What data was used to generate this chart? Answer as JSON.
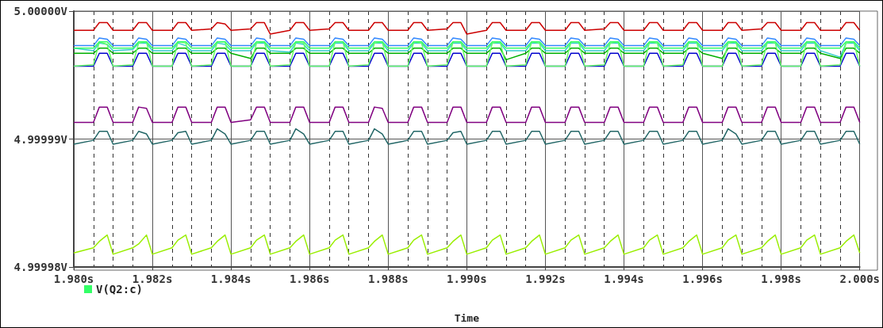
{
  "chart_data": {
    "type": "line",
    "xlabel": "Time",
    "xlim": [
      1.98,
      2.0
    ],
    "xticks": [
      {
        "value": 1.98,
        "label": "1.980s"
      },
      {
        "value": 1.982,
        "label": "1.982s"
      },
      {
        "value": 1.984,
        "label": "1.984s"
      },
      {
        "value": 1.986,
        "label": "1.986s"
      },
      {
        "value": 1.988,
        "label": "1.988s"
      },
      {
        "value": 1.99,
        "label": "1.990s"
      },
      {
        "value": 1.992,
        "label": "1.992s"
      },
      {
        "value": 1.994,
        "label": "1.994s"
      },
      {
        "value": 1.996,
        "label": "1.996s"
      },
      {
        "value": 1.998,
        "label": "1.998s"
      },
      {
        "value": 2.0,
        "label": "2.000s"
      }
    ],
    "ylim": [
      4.99998,
      5.0
    ],
    "yticks": [
      {
        "value": 4.99998,
        "label": "4.99998V"
      },
      {
        "value": 4.99999,
        "label": "4.99999V"
      },
      {
        "value": 5.0,
        "label": "5.00000V"
      }
    ],
    "grid": true,
    "legend": "bottom left",
    "line_style": "solid",
    "x": [
      1.98,
      1.9805,
      1.98065,
      1.98085,
      1.981,
      1.9815,
      1.98165,
      1.98185,
      1.982,
      1.9825,
      1.98265,
      1.98285,
      1.983,
      1.9835,
      1.98365,
      1.98385,
      1.984,
      1.9845,
      1.98465,
      1.98485,
      1.985,
      1.9855,
      1.98565,
      1.98585,
      1.986,
      1.9865,
      1.98665,
      1.98685,
      1.987,
      1.9875,
      1.98765,
      1.98785,
      1.988,
      1.9885,
      1.98865,
      1.98885,
      1.989,
      1.9895,
      1.98965,
      1.98985,
      1.99,
      1.9905,
      1.99065,
      1.99085,
      1.991,
      1.9915,
      1.99165,
      1.99185,
      1.992,
      1.9925,
      1.99265,
      1.99285,
      1.993,
      1.9935,
      1.99365,
      1.99385,
      1.994,
      1.9945,
      1.99465,
      1.99485,
      1.995,
      1.9955,
      1.99565,
      1.99585,
      1.996,
      1.9965,
      1.99665,
      1.99685,
      1.997,
      1.9975,
      1.99765,
      1.99785,
      1.998,
      1.9985,
      1.99865,
      1.99885,
      1.999,
      1.9995,
      1.99965,
      1.99985,
      2.0
    ],
    "series": [
      {
        "color": "#cc0000",
        "values": [
          4.9999985,
          4.9999985,
          4.9999991,
          4.9999991,
          4.9999985,
          4.9999985,
          4.9999991,
          4.9999991,
          4.9999985,
          4.9999985,
          4.9999991,
          4.9999991,
          4.9999985,
          4.9999986,
          4.9999991,
          4.999999,
          4.9999985,
          4.9999986,
          4.9999991,
          4.9999991,
          4.9999982,
          4.9999985,
          4.9999991,
          4.9999991,
          4.9999985,
          4.9999986,
          4.9999991,
          4.9999991,
          4.9999985,
          4.9999985,
          4.9999991,
          4.9999991,
          4.9999985,
          4.9999985,
          4.9999991,
          4.9999991,
          4.9999985,
          4.9999986,
          4.9999991,
          4.9999991,
          4.9999982,
          4.9999985,
          4.9999991,
          4.9999991,
          4.9999985,
          4.9999985,
          4.9999991,
          4.9999991,
          4.9999985,
          4.9999985,
          4.9999991,
          4.9999991,
          4.9999985,
          4.9999986,
          4.9999991,
          4.9999991,
          4.9999985,
          4.9999985,
          4.9999991,
          4.9999991,
          4.9999985,
          4.9999985,
          4.9999991,
          4.9999991,
          4.9999985,
          4.9999985,
          4.9999991,
          4.9999991,
          4.9999985,
          4.9999986,
          4.9999991,
          4.9999991,
          4.9999985,
          4.9999985,
          4.9999991,
          4.9999991,
          4.9999985,
          4.9999985,
          4.9999991,
          4.9999991,
          4.9999985
        ]
      },
      {
        "color": "#33cccc",
        "values": [
          4.9999971,
          4.9999969,
          4.9999975,
          4.9999974,
          4.9999969,
          4.999997,
          4.9999975,
          4.9999975,
          4.9999969,
          4.9999969,
          4.9999975,
          4.9999973,
          4.9999969,
          4.9999969,
          4.9999975,
          4.9999974,
          4.9999969,
          4.9999969,
          4.9999975,
          4.9999975,
          4.9999969,
          4.9999968,
          4.9999975,
          4.9999974,
          4.9999969,
          4.9999969,
          4.9999975,
          4.9999975,
          4.9999969,
          4.9999969,
          4.9999975,
          4.9999975,
          4.9999969,
          4.9999969,
          4.9999975,
          4.9999975,
          4.9999969,
          4.9999969,
          4.9999975,
          4.9999975,
          4.9999969,
          4.9999969,
          4.9999975,
          4.9999975,
          4.9999969,
          4.9999969,
          4.9999975,
          4.9999975,
          4.9999969,
          4.9999969,
          4.9999975,
          4.9999975,
          4.9999969,
          4.9999969,
          4.9999975,
          4.9999975,
          4.9999969,
          4.9999969,
          4.9999975,
          4.9999975,
          4.9999969,
          4.9999969,
          4.9999975,
          4.9999975,
          4.9999969,
          4.9999969,
          4.9999975,
          4.9999975,
          4.9999969,
          4.9999969,
          4.9999975,
          4.9999975,
          4.9999969,
          4.9999969,
          4.9999975,
          4.9999975,
          4.9999969,
          4.9999964,
          4.9999975,
          4.9999975,
          4.9999969
        ]
      },
      {
        "color": "#00b000",
        "values": [
          4.9999967,
          4.9999967,
          4.9999971,
          4.9999971,
          4.9999967,
          4.9999967,
          4.9999971,
          4.9999971,
          4.9999967,
          4.9999967,
          4.9999971,
          4.9999971,
          4.9999967,
          4.9999967,
          4.9999971,
          4.9999971,
          4.9999967,
          4.9999963,
          4.9999971,
          4.9999971,
          4.9999967,
          4.9999967,
          4.9999971,
          4.9999971,
          4.9999967,
          4.9999967,
          4.9999971,
          4.9999971,
          4.9999967,
          4.9999967,
          4.9999971,
          4.9999971,
          4.9999967,
          4.9999967,
          4.9999971,
          4.9999971,
          4.9999967,
          4.9999967,
          4.9999971,
          4.9999971,
          4.9999967,
          4.9999967,
          4.9999971,
          4.9999971,
          4.9999962,
          4.9999967,
          4.9999971,
          4.9999971,
          4.9999967,
          4.9999967,
          4.9999971,
          4.9999971,
          4.9999967,
          4.9999967,
          4.9999971,
          4.9999971,
          4.9999967,
          4.9999967,
          4.9999971,
          4.9999971,
          4.9999967,
          4.9999967,
          4.9999971,
          4.9999971,
          4.9999967,
          4.9999963,
          4.9999971,
          4.9999971,
          4.9999967,
          4.9999967,
          4.9999971,
          4.9999971,
          4.9999967,
          4.9999967,
          4.9999971,
          4.9999971,
          4.9999967,
          4.9999963,
          4.9999971,
          4.9999971,
          4.9999967
        ]
      },
      {
        "color": "#3388ff",
        "values": [
          4.9999973,
          4.9999973,
          4.9999979,
          4.9999978,
          4.9999973,
          4.9999973,
          4.9999979,
          4.9999978,
          4.9999973,
          4.9999973,
          4.9999979,
          4.9999978,
          4.9999973,
          4.9999973,
          4.9999979,
          4.9999978,
          4.9999973,
          4.9999973,
          4.9999979,
          4.9999978,
          4.9999973,
          4.9999973,
          4.9999979,
          4.9999978,
          4.9999973,
          4.9999973,
          4.9999979,
          4.9999978,
          4.9999973,
          4.9999973,
          4.9999979,
          4.9999978,
          4.9999973,
          4.9999973,
          4.9999979,
          4.9999978,
          4.9999973,
          4.9999973,
          4.9999979,
          4.9999978,
          4.9999973,
          4.9999973,
          4.9999979,
          4.9999978,
          4.9999973,
          4.9999973,
          4.9999979,
          4.9999978,
          4.9999973,
          4.9999973,
          4.9999979,
          4.9999978,
          4.9999973,
          4.9999973,
          4.9999979,
          4.9999978,
          4.9999973,
          4.9999973,
          4.9999979,
          4.9999978,
          4.9999973,
          4.9999973,
          4.9999979,
          4.9999978,
          4.9999973,
          4.9999973,
          4.9999979,
          4.9999978,
          4.9999973,
          4.9999973,
          4.9999979,
          4.9999978,
          4.9999973,
          4.9999973,
          4.9999979,
          4.9999978,
          4.9999973,
          4.9999973,
          4.9999979,
          4.9999978,
          4.9999973
        ]
      },
      {
        "color": "#0000cc",
        "values": [
          4.9999957,
          4.9999957,
          4.9999967,
          4.9999967,
          4.9999957,
          4.9999957,
          4.9999967,
          4.9999967,
          4.9999957,
          4.9999957,
          4.9999967,
          4.9999967,
          4.9999957,
          4.9999957,
          4.9999967,
          4.9999967,
          4.9999957,
          4.9999957,
          4.9999967,
          4.9999967,
          4.9999957,
          4.9999957,
          4.9999967,
          4.9999967,
          4.9999957,
          4.9999957,
          4.9999967,
          4.9999967,
          4.9999957,
          4.9999957,
          4.9999967,
          4.9999967,
          4.9999957,
          4.9999957,
          4.9999967,
          4.9999967,
          4.9999957,
          4.9999957,
          4.9999967,
          4.9999967,
          4.9999957,
          4.9999957,
          4.9999967,
          4.9999967,
          4.9999957,
          4.9999957,
          4.9999967,
          4.9999967,
          4.9999957,
          4.9999957,
          4.9999967,
          4.9999967,
          4.9999957,
          4.9999957,
          4.9999967,
          4.9999967,
          4.9999957,
          4.9999957,
          4.9999967,
          4.9999967,
          4.9999957,
          4.9999957,
          4.9999967,
          4.9999967,
          4.9999957,
          4.9999957,
          4.9999967,
          4.9999967,
          4.9999957,
          4.9999957,
          4.9999967,
          4.9999967,
          4.9999957,
          4.9999957,
          4.9999967,
          4.9999967,
          4.9999957,
          4.9999957,
          4.9999967,
          4.9999967,
          4.9999957
        ]
      },
      {
        "color": "#66ff66",
        "values": [
          4.9999957,
          4.9999958,
          4.9999976,
          4.9999974,
          4.9999957,
          4.9999958,
          4.9999975,
          4.9999976,
          4.9999957,
          4.9999957,
          4.9999976,
          4.9999975,
          4.9999957,
          4.9999958,
          4.9999976,
          4.9999976,
          4.9999957,
          4.9999957,
          4.9999975,
          4.9999976,
          4.9999957,
          4.9999958,
          4.9999976,
          4.9999975,
          4.9999957,
          4.9999957,
          4.9999976,
          4.9999976,
          4.9999957,
          4.9999958,
          4.9999975,
          4.9999976,
          4.9999957,
          4.9999957,
          4.9999976,
          4.9999975,
          4.9999957,
          4.9999958,
          4.9999976,
          4.9999976,
          4.9999957,
          4.9999957,
          4.9999975,
          4.9999976,
          4.9999957,
          4.9999958,
          4.9999976,
          4.9999975,
          4.9999957,
          4.9999957,
          4.9999976,
          4.9999976,
          4.9999957,
          4.9999958,
          4.9999975,
          4.9999976,
          4.9999957,
          4.9999957,
          4.9999976,
          4.9999975,
          4.9999957,
          4.9999958,
          4.9999976,
          4.9999976,
          4.9999957,
          4.9999957,
          4.9999975,
          4.9999976,
          4.9999957,
          4.9999958,
          4.9999976,
          4.9999975,
          4.9999957,
          4.9999957,
          4.9999976,
          4.9999976,
          4.9999957,
          4.9999958,
          4.9999975,
          4.9999976,
          4.9999957
        ]
      },
      {
        "color": "#800080",
        "values": [
          4.9999913,
          4.9999913,
          4.9999925,
          4.9999925,
          4.9999913,
          4.9999913,
          4.9999925,
          4.9999924,
          4.9999913,
          4.9999913,
          4.9999925,
          4.9999925,
          4.9999913,
          4.9999913,
          4.9999925,
          4.9999925,
          4.9999913,
          4.9999915,
          4.9999925,
          4.9999925,
          4.9999913,
          4.9999913,
          4.9999925,
          4.9999925,
          4.9999913,
          4.9999913,
          4.9999925,
          4.9999925,
          4.9999913,
          4.9999913,
          4.9999925,
          4.9999924,
          4.9999913,
          4.9999913,
          4.9999925,
          4.9999925,
          4.9999913,
          4.9999913,
          4.9999925,
          4.9999925,
          4.9999913,
          4.9999913,
          4.9999925,
          4.9999925,
          4.9999913,
          4.9999913,
          4.9999925,
          4.9999925,
          4.9999913,
          4.9999913,
          4.9999925,
          4.9999925,
          4.9999913,
          4.9999913,
          4.9999925,
          4.9999925,
          4.9999913,
          4.9999913,
          4.9999925,
          4.9999925,
          4.9999913,
          4.9999913,
          4.9999925,
          4.9999925,
          4.9999913,
          4.9999913,
          4.9999925,
          4.9999925,
          4.9999913,
          4.9999913,
          4.9999925,
          4.9999925,
          4.9999913,
          4.9999913,
          4.9999925,
          4.9999925,
          4.9999913,
          4.9999913,
          4.9999925,
          4.9999925,
          4.9999913
        ]
      },
      {
        "color": "#226666",
        "values": [
          4.9999896,
          4.9999899,
          4.9999906,
          4.9999906,
          4.9999896,
          4.9999899,
          4.9999906,
          4.9999904,
          4.9999896,
          4.9999899,
          4.9999905,
          4.9999906,
          4.9999896,
          4.9999899,
          4.9999908,
          4.9999904,
          4.9999896,
          4.9999899,
          4.9999906,
          4.9999906,
          4.9999896,
          4.9999899,
          4.9999908,
          4.9999904,
          4.9999896,
          4.9999899,
          4.9999906,
          4.9999906,
          4.9999896,
          4.9999899,
          4.9999908,
          4.9999904,
          4.9999896,
          4.9999899,
          4.9999906,
          4.9999906,
          4.9999896,
          4.9999899,
          4.9999905,
          4.9999906,
          4.9999896,
          4.9999899,
          4.9999906,
          4.9999906,
          4.9999896,
          4.9999899,
          4.9999906,
          4.9999906,
          4.9999896,
          4.9999899,
          4.9999906,
          4.9999906,
          4.9999896,
          4.9999899,
          4.9999906,
          4.9999906,
          4.9999896,
          4.9999899,
          4.9999906,
          4.9999906,
          4.9999896,
          4.9999899,
          4.9999906,
          4.9999906,
          4.9999896,
          4.9999899,
          4.9999908,
          4.9999904,
          4.9999896,
          4.9999899,
          4.9999906,
          4.9999906,
          4.9999896,
          4.9999899,
          4.9999906,
          4.9999906,
          4.9999896,
          4.9999899,
          4.9999906,
          4.9999906,
          4.9999896
        ]
      },
      {
        "color": "#33ff66",
        "name": "V(Q2:c)",
        "values": [
          4.9999971,
          4.9999971,
          4.9999976,
          4.9999976,
          4.9999971,
          4.9999971,
          4.9999976,
          4.9999976,
          4.9999971,
          4.9999971,
          4.9999976,
          4.9999976,
          4.9999971,
          4.9999971,
          4.9999976,
          4.9999976,
          4.9999971,
          4.9999971,
          4.9999976,
          4.9999976,
          4.9999971,
          4.9999971,
          4.9999976,
          4.9999976,
          4.9999971,
          4.9999971,
          4.9999976,
          4.9999976,
          4.9999971,
          4.9999971,
          4.9999976,
          4.9999976,
          4.9999971,
          4.9999971,
          4.9999976,
          4.9999976,
          4.9999971,
          4.9999971,
          4.9999976,
          4.9999976,
          4.9999971,
          4.9999971,
          4.9999976,
          4.9999976,
          4.9999971,
          4.9999971,
          4.9999976,
          4.9999976,
          4.9999971,
          4.9999971,
          4.9999976,
          4.9999976,
          4.9999971,
          4.9999971,
          4.9999976,
          4.9999976,
          4.9999971,
          4.9999971,
          4.9999976,
          4.9999976,
          4.9999971,
          4.9999971,
          4.9999976,
          4.9999976,
          4.9999971,
          4.9999971,
          4.9999976,
          4.9999976,
          4.9999971,
          4.9999971,
          4.9999976,
          4.9999976,
          4.9999971,
          4.9999971,
          4.9999976,
          4.9999976,
          4.9999971,
          4.9999971,
          4.9999976,
          4.9999976,
          4.9999971
        ]
      },
      {
        "color": "#99ee00",
        "values": [
          4.9999811,
          4.9999815,
          4.999982,
          4.9999825,
          4.999981,
          4.9999815,
          4.9999818,
          4.9999825,
          4.999981,
          4.9999815,
          4.9999821,
          4.9999825,
          4.999981,
          4.9999815,
          4.999982,
          4.9999825,
          4.999981,
          4.9999815,
          4.9999821,
          4.9999825,
          4.999981,
          4.9999815,
          4.999982,
          4.9999825,
          4.999981,
          4.9999815,
          4.9999821,
          4.9999825,
          4.999981,
          4.9999815,
          4.999982,
          4.9999825,
          4.999981,
          4.9999815,
          4.9999821,
          4.9999825,
          4.999981,
          4.9999815,
          4.999982,
          4.9999825,
          4.999981,
          4.9999815,
          4.9999821,
          4.9999825,
          4.999981,
          4.9999815,
          4.999982,
          4.9999825,
          4.999981,
          4.9999815,
          4.9999821,
          4.9999825,
          4.999981,
          4.9999815,
          4.999982,
          4.9999825,
          4.999981,
          4.9999815,
          4.9999821,
          4.9999825,
          4.999981,
          4.9999815,
          4.999982,
          4.9999825,
          4.999981,
          4.9999815,
          4.9999821,
          4.9999825,
          4.999981,
          4.9999815,
          4.999982,
          4.9999825,
          4.999981,
          4.9999815,
          4.9999821,
          4.9999825,
          4.999981,
          4.9999815,
          4.999982,
          4.9999825,
          4.9999811
        ]
      }
    ]
  }
}
